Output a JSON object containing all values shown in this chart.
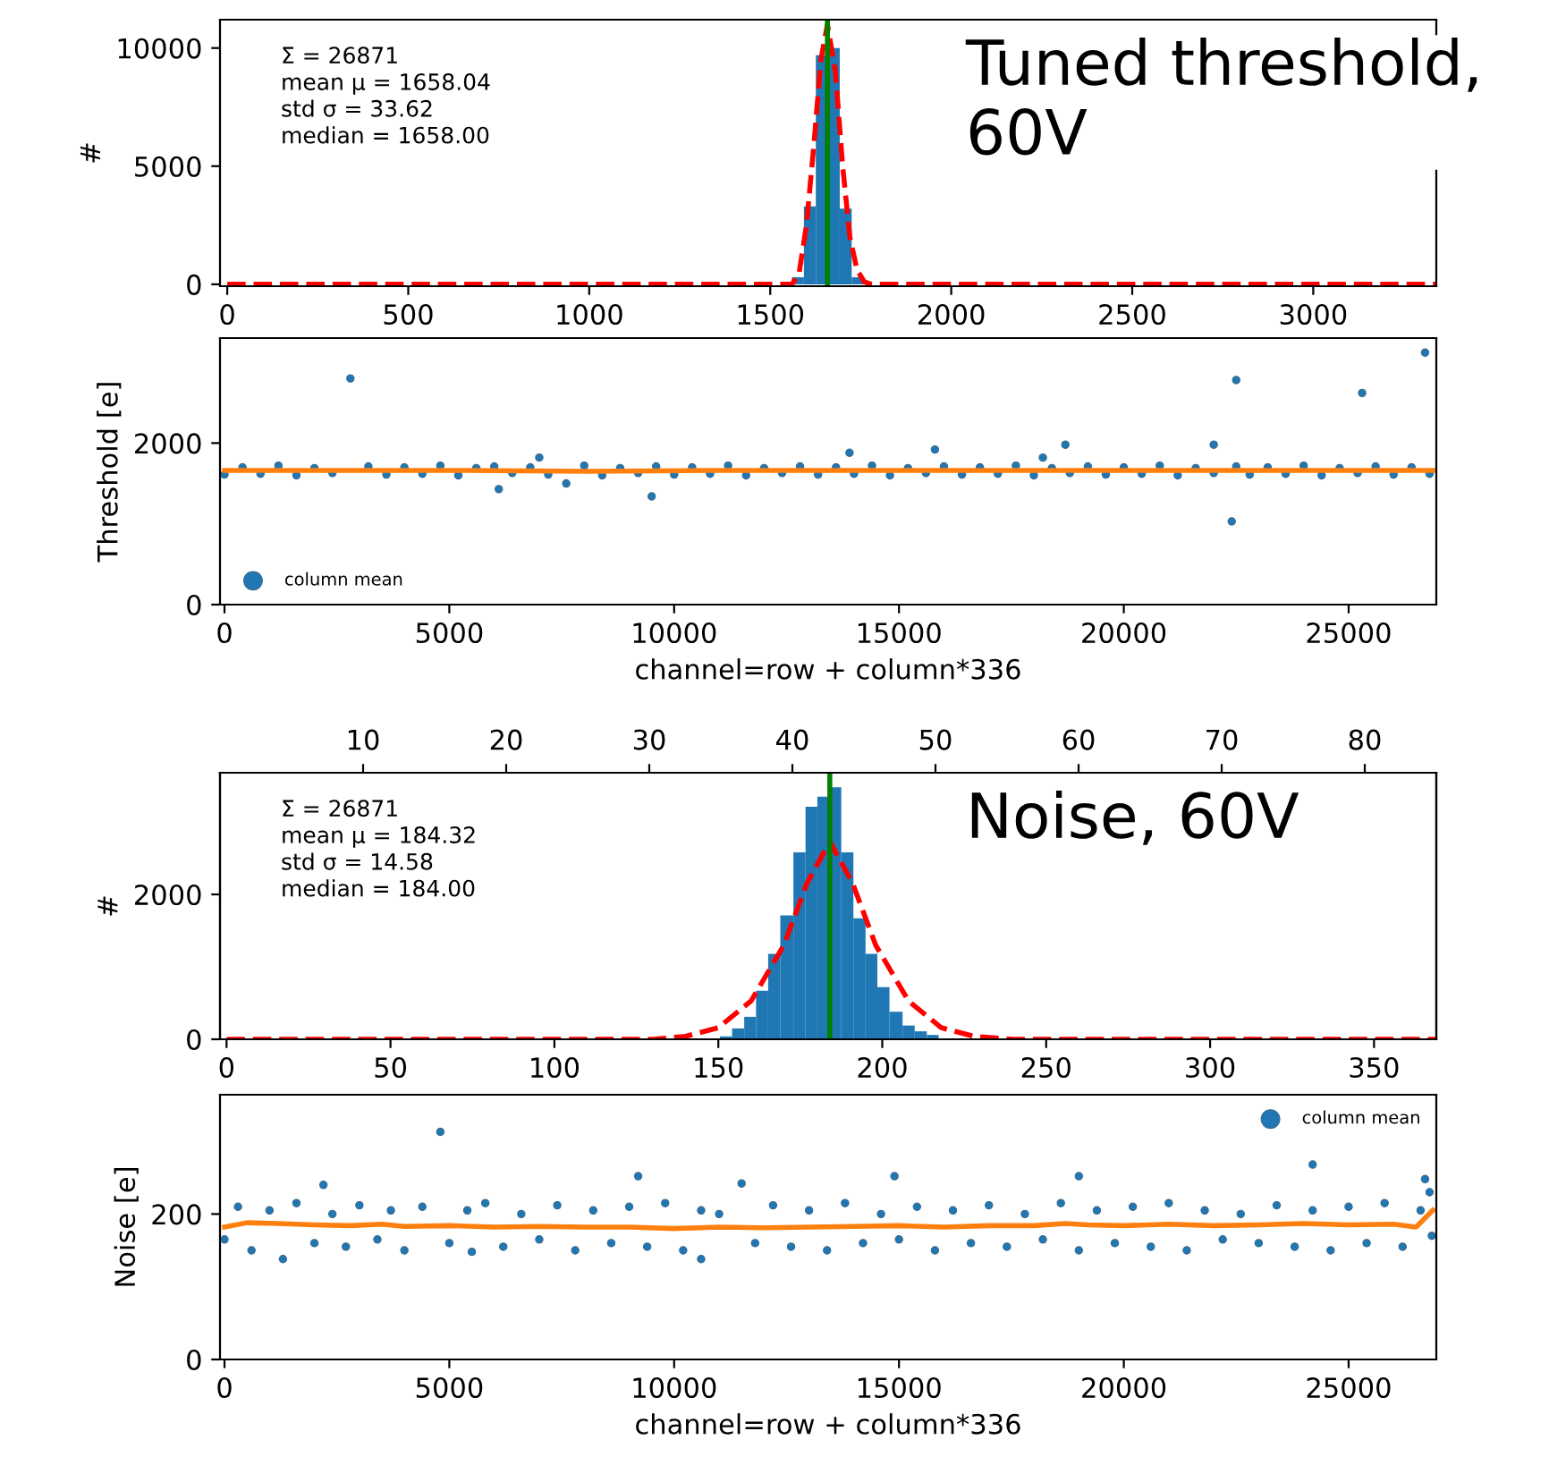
{
  "chart_data": [
    {
      "type": "histogram",
      "title": "Tuned threshold, 60V",
      "ylabel": "#",
      "annotations": [
        "Σ = 26871",
        "mean μ = 1658.04",
        "std σ = 33.62",
        "median = 1658.00"
      ],
      "bins": [
        1560,
        1593,
        1626,
        1659,
        1692,
        1725,
        1758
      ],
      "series": [
        {
          "color": "#1f77b4",
          "values": [
            300,
            3300,
            9700,
            10000,
            3200,
            300
          ]
        },
        {
          "type": "line",
          "color": "#ff0000",
          "line_style": "dashed",
          "x": [
            0,
            1540,
            1560,
            1580,
            1600,
            1620,
            1640,
            1658,
            1680,
            1700,
            1720,
            1740,
            1760,
            1780,
            3340
          ],
          "values": [
            0,
            0,
            0,
            500,
            2500,
            5800,
            9500,
            11000,
            9000,
            5000,
            2000,
            600,
            100,
            0,
            0
          ]
        }
      ],
      "ref_lines": [
        {
          "axis": "x",
          "value": 1658,
          "color": "#008000"
        }
      ],
      "xlim": [
        -20,
        3340
      ],
      "xticks": [
        0,
        500,
        1000,
        1500,
        2000,
        2500,
        3000
      ],
      "ylim": [
        -80,
        11200
      ],
      "yticks": [
        0,
        5000,
        10000
      ],
      "grid": false
    },
    {
      "type": "scatter",
      "xlabel": "channel=row + column*336",
      "ylabel": "Threshold [e]",
      "legend": "bottom left",
      "series": [
        {
          "name": "column mean",
          "color": "#1f77b4",
          "x": [
            0,
            400,
            800,
            1200,
            1600,
            2000,
            2400,
            2800,
            3200,
            3600,
            4000,
            4400,
            4800,
            5200,
            5600,
            6000,
            6100,
            6400,
            6800,
            7000,
            7200,
            7600,
            8000,
            8400,
            8800,
            9200,
            9500,
            9600,
            10000,
            10400,
            10800,
            11200,
            11600,
            12000,
            12400,
            12800,
            13200,
            13600,
            13900,
            14000,
            14400,
            14800,
            15200,
            15600,
            15800,
            16000,
            16400,
            16800,
            17200,
            17600,
            18000,
            18200,
            18400,
            18700,
            18800,
            19200,
            19600,
            20000,
            20400,
            20800,
            21200,
            21600,
            22000,
            22000,
            22400,
            22500,
            22500,
            22800,
            23200,
            23600,
            24000,
            24400,
            24800,
            25200,
            25300,
            25600,
            26000,
            26400,
            26700,
            26800
          ],
          "values": [
            1610,
            1700,
            1620,
            1720,
            1600,
            1690,
            1630,
            2800,
            1710,
            1610,
            1700,
            1620,
            1720,
            1600,
            1690,
            1710,
            1430,
            1630,
            1700,
            1820,
            1610,
            1500,
            1720,
            1600,
            1690,
            1630,
            1340,
            1710,
            1610,
            1700,
            1620,
            1720,
            1600,
            1690,
            1630,
            1710,
            1610,
            1700,
            1880,
            1620,
            1720,
            1600,
            1690,
            1630,
            1920,
            1710,
            1610,
            1700,
            1620,
            1720,
            1600,
            1820,
            1690,
            1980,
            1630,
            1710,
            1610,
            1700,
            1620,
            1720,
            1600,
            1690,
            1980,
            1630,
            1030,
            2780,
            1710,
            1610,
            1700,
            1620,
            1720,
            1600,
            1690,
            1630,
            2620,
            1710,
            1610,
            1700,
            3120,
            1620
          ]
        },
        {
          "type": "line",
          "color": "#ff7f0e",
          "x": [
            0,
            2700,
            5400,
            8100,
            10800,
            13500,
            16200,
            18900,
            21600,
            24300,
            26871
          ],
          "values": [
            1660,
            1660,
            1660,
            1650,
            1660,
            1660,
            1660,
            1660,
            1660,
            1660,
            1660
          ]
        }
      ],
      "xlim": [
        -100,
        26950
      ],
      "xticks": [
        0,
        5000,
        10000,
        15000,
        20000,
        25000
      ],
      "ylim": [
        0,
        3300
      ],
      "yticks": [
        0,
        2000
      ],
      "grid": false
    },
    {
      "type": "histogram",
      "title": "Noise, 60V",
      "ylabel": "#",
      "annotations": [
        "Σ = 26871",
        "mean μ = 184.32",
        "std σ = 14.58",
        "median = 184.00"
      ],
      "bins": [
        150.5,
        154.2,
        157.9,
        161.5,
        165.2,
        168.9,
        172.9,
        176.6,
        180.2,
        183.5,
        187.5,
        191.2,
        194.9,
        198.5,
        202.2,
        206.2,
        209.9,
        213.6,
        217.2,
        220.9,
        225.1
      ],
      "series": [
        {
          "color": "#1f77b4",
          "values": [
            40,
            150,
            310,
            670,
            1180,
            1710,
            2580,
            3210,
            3350,
            3480,
            2580,
            1670,
            1180,
            720,
            380,
            190,
            110,
            60,
            null,
            10
          ]
        },
        {
          "type": "line",
          "color": "#ff0000",
          "line_style": "dashed",
          "x": [
            0,
            130,
            140,
            150,
            160,
            170,
            177,
            184,
            191,
            198,
            208,
            218,
            228,
            240,
            369
          ],
          "values": [
            0,
            0,
            40,
            160,
            530,
            1300,
            2150,
            2730,
            2150,
            1300,
            530,
            160,
            40,
            0,
            0
          ]
        }
      ],
      "ref_lines": [
        {
          "axis": "x",
          "value": 184,
          "color": "#008000"
        }
      ],
      "xlim": [
        -2,
        369
      ],
      "xticks": [
        0,
        50,
        100,
        150,
        200,
        250,
        300,
        350
      ],
      "x2lim": [
        0,
        85
      ],
      "x2ticks": [
        10,
        20,
        30,
        40,
        50,
        60,
        70,
        80
      ],
      "ylim": [
        0,
        3680
      ],
      "yticks": [
        0,
        2000
      ],
      "grid": false
    },
    {
      "type": "scatter",
      "xlabel": "channel=row + column*336",
      "ylabel": "Noise [e]",
      "legend": "top right",
      "series": [
        {
          "name": "column mean",
          "color": "#1f77b4",
          "x": [
            0,
            300,
            600,
            1000,
            1300,
            1600,
            2000,
            2200,
            2400,
            2700,
            3000,
            3400,
            3700,
            4000,
            4400,
            4800,
            5000,
            5400,
            5500,
            5800,
            6200,
            6600,
            7000,
            7400,
            7800,
            8200,
            8600,
            9000,
            9200,
            9400,
            9800,
            10200,
            10600,
            10600,
            11000,
            11500,
            11800,
            12200,
            12600,
            13000,
            13400,
            13800,
            14200,
            14600,
            14900,
            15000,
            15400,
            15800,
            16200,
            16600,
            17000,
            17400,
            17800,
            18200,
            18600,
            19000,
            19000,
            19400,
            19800,
            20200,
            20600,
            21000,
            21400,
            21800,
            22200,
            22600,
            23000,
            23400,
            23800,
            24200,
            24200,
            24600,
            25000,
            25400,
            25800,
            26200,
            26600,
            26700,
            26800,
            26850
          ],
          "values": [
            165,
            210,
            150,
            205,
            138,
            215,
            160,
            240,
            200,
            155,
            212,
            165,
            205,
            150,
            210,
            313,
            160,
            205,
            148,
            215,
            155,
            200,
            165,
            212,
            150,
            205,
            160,
            210,
            252,
            155,
            215,
            150,
            205,
            138,
            200,
            242,
            160,
            212,
            155,
            205,
            150,
            215,
            160,
            200,
            252,
            165,
            210,
            150,
            205,
            160,
            212,
            155,
            200,
            165,
            215,
            252,
            150,
            205,
            160,
            210,
            155,
            215,
            150,
            205,
            165,
            200,
            160,
            212,
            155,
            268,
            205,
            150,
            210,
            160,
            215,
            155,
            205,
            248,
            230,
            170
          ]
        },
        {
          "type": "line",
          "color": "#ff7f0e",
          "x": [
            0,
            500,
            1200,
            2000,
            2800,
            3500,
            4000,
            5000,
            6000,
            7000,
            8000,
            9000,
            10000,
            11000,
            12000,
            13000,
            14000,
            15000,
            16000,
            17000,
            18000,
            18700,
            19200,
            20000,
            21000,
            22000,
            23000,
            24000,
            25000,
            26000,
            26500,
            26871
          ],
          "values": [
            182,
            188,
            187,
            185,
            184,
            186,
            183,
            184,
            182,
            183,
            182,
            182,
            180,
            182,
            181,
            182,
            183,
            184,
            182,
            184,
            184,
            187,
            185,
            184,
            186,
            184,
            185,
            187,
            185,
            186,
            182,
            205
          ]
        }
      ],
      "xlim": [
        -100,
        26950
      ],
      "xticks": [
        0,
        5000,
        10000,
        15000,
        20000,
        25000
      ],
      "ylim": [
        0,
        364
      ],
      "yticks": [
        0,
        200
      ],
      "grid": false
    }
  ]
}
